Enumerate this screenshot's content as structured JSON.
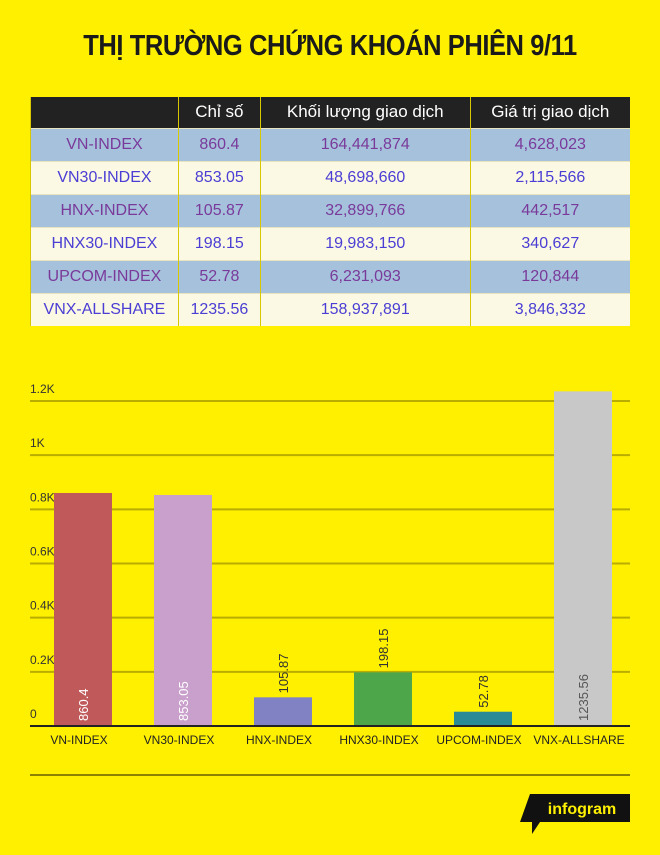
{
  "title": "THỊ TRƯỜNG CHỨNG KHOÁN PHIÊN 9/11",
  "table": {
    "headers": [
      "",
      "Chỉ số",
      "Khối lượng giao dịch",
      "Giá trị giao dịch"
    ],
    "rows": [
      [
        "VN-INDEX",
        "860.4",
        "164,441,874",
        "4,628,023"
      ],
      [
        "VN30-INDEX",
        "853.05",
        "48,698,660",
        "2,115,566"
      ],
      [
        "HNX-INDEX",
        "105.87",
        "32,899,766",
        "442,517"
      ],
      [
        "HNX30-INDEX",
        "198.15",
        "19,983,150",
        "340,627"
      ],
      [
        "UPCOM-INDEX",
        "52.78",
        "6,231,093",
        "120,844"
      ],
      [
        "VNX-ALLSHARE",
        "1235.56",
        "158,937,891",
        "3,846,332"
      ]
    ]
  },
  "chart_data": {
    "type": "bar",
    "categories": [
      "VN-INDEX",
      "VN30-INDEX",
      "HNX-INDEX",
      "HNX30-INDEX",
      "UPCOM-INDEX",
      "VNX-ALLSHARE"
    ],
    "values": [
      860.4,
      853.05,
      105.87,
      198.15,
      52.78,
      1235.56
    ],
    "value_labels": [
      "860.4",
      "853.05",
      "105.87",
      "198.15",
      "52.78",
      "1235.56"
    ],
    "colors": [
      "#c05a5a",
      "#c99fcc",
      "#8082c4",
      "#4ea64a",
      "#2a8a96",
      "#c8c8c8"
    ],
    "yticks": [
      0,
      200,
      400,
      600,
      800,
      1000,
      1200
    ],
    "ytick_labels": [
      "0",
      "0.2K",
      "0.4K",
      "0.6K",
      "0.8K",
      "1K",
      "1.2K"
    ],
    "ylim": [
      0,
      1200
    ],
    "grid": true,
    "title": "",
    "xlabel": "",
    "ylabel": ""
  },
  "logo": "infogram"
}
